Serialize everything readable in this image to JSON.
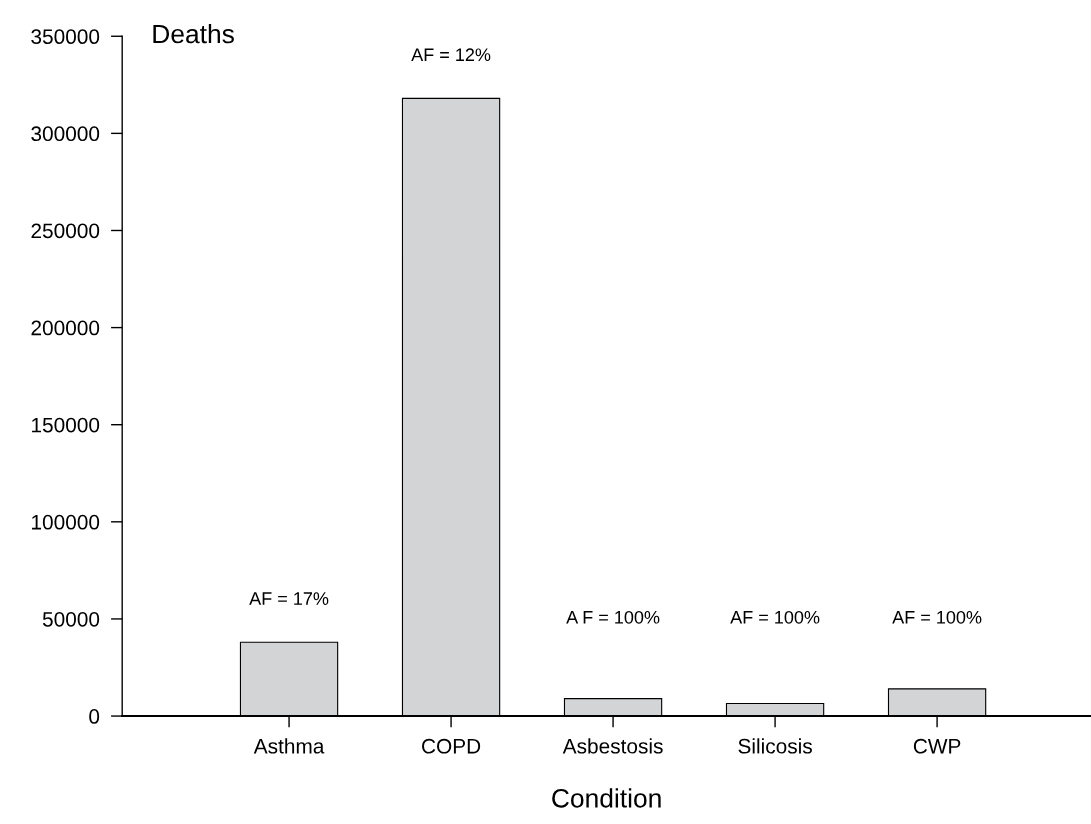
{
  "chart_data": {
    "type": "bar",
    "xlabel": "Condition",
    "ylabel": "Deaths",
    "categories": [
      "Asthma",
      "COPD",
      "Asbestosis",
      "Silicosis",
      "CWP"
    ],
    "values": [
      38000,
      318000,
      9000,
      6500,
      14000
    ],
    "color": "#d3d4d6",
    "ylim": [
      0,
      350000
    ],
    "yticks": [
      0,
      50000,
      100000,
      150000,
      200000,
      250000,
      300000,
      350000
    ],
    "grid": false,
    "annotations": [
      "AF = 17%",
      "AF = 12%",
      "A F = 100%",
      "AF = 100%",
      "AF = 100%"
    ]
  }
}
